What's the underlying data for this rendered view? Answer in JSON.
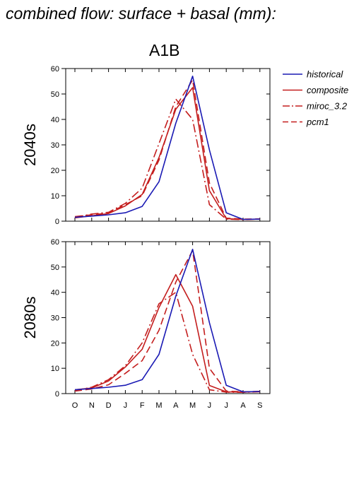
{
  "title": "combined flow: surface + basal (mm):",
  "chart_data": {
    "type": "line",
    "scenario": "A1B",
    "categories": [
      "O",
      "N",
      "D",
      "J",
      "F",
      "M",
      "A",
      "M",
      "J",
      "J",
      "A",
      "S"
    ],
    "ylim": [
      0,
      60
    ],
    "yticks": [
      0,
      10,
      20,
      30,
      40,
      50,
      60
    ],
    "grid": false,
    "legend_position": "right",
    "colors": {
      "historical": "#1a1ab4",
      "future": "#c41e1e"
    },
    "legend": [
      {
        "name": "historical",
        "color": "#1a1ab4",
        "dash": ""
      },
      {
        "name": "composite",
        "color": "#c41e1e",
        "dash": ""
      },
      {
        "name": "miroc_3.2",
        "color": "#c41e1e",
        "dash": "12,4,2,4"
      },
      {
        "name": "pcm1",
        "color": "#c41e1e",
        "dash": "10,5"
      }
    ],
    "panels": [
      {
        "ylabel": "2040s",
        "series": [
          {
            "name": "historical",
            "values": [
              1.5,
              2.0,
              2.5,
              3.3,
              5.8,
              15.5,
              38.5,
              57,
              28,
              3.3,
              0.7,
              0.8
            ]
          },
          {
            "name": "composite",
            "values": [
              1.3,
              2.1,
              3.0,
              6.0,
              10.5,
              25.0,
              44.0,
              52.5,
              12.0,
              1.0,
              0.7,
              0.8
            ]
          },
          {
            "name": "miroc_3.2",
            "values": [
              1.5,
              2.8,
              3.5,
              7.0,
              13.0,
              30.5,
              48.0,
              40.0,
              6.5,
              0.8,
              0.6,
              0.8
            ]
          },
          {
            "name": "pcm1",
            "values": [
              1.8,
              2.5,
              3.2,
              6.5,
              10.0,
              24.0,
              45.0,
              55.5,
              15.0,
              1.2,
              0.8,
              0.9
            ]
          }
        ]
      },
      {
        "ylabel": "2080s",
        "series": [
          {
            "name": "historical",
            "values": [
              1.5,
              2.0,
              2.5,
              3.3,
              5.5,
              15.5,
              38.5,
              57,
              28,
              3.3,
              0.7,
              0.8
            ]
          },
          {
            "name": "composite",
            "values": [
              1.5,
              2.2,
              5.0,
              10.5,
              17.5,
              34.0,
              47.0,
              34.5,
              3.2,
              0.7,
              0.6,
              0.8
            ]
          },
          {
            "name": "miroc_3.2",
            "values": [
              1.2,
              2.5,
              5.5,
              11.0,
              20.0,
              35.5,
              40.0,
              15.5,
              1.5,
              0.6,
              0.5,
              0.7
            ]
          },
          {
            "name": "pcm1",
            "values": [
              1.0,
              1.8,
              3.5,
              8.0,
              13.0,
              25.0,
              44.0,
              56.5,
              10.0,
              1.0,
              0.7,
              0.9
            ]
          }
        ]
      }
    ]
  }
}
